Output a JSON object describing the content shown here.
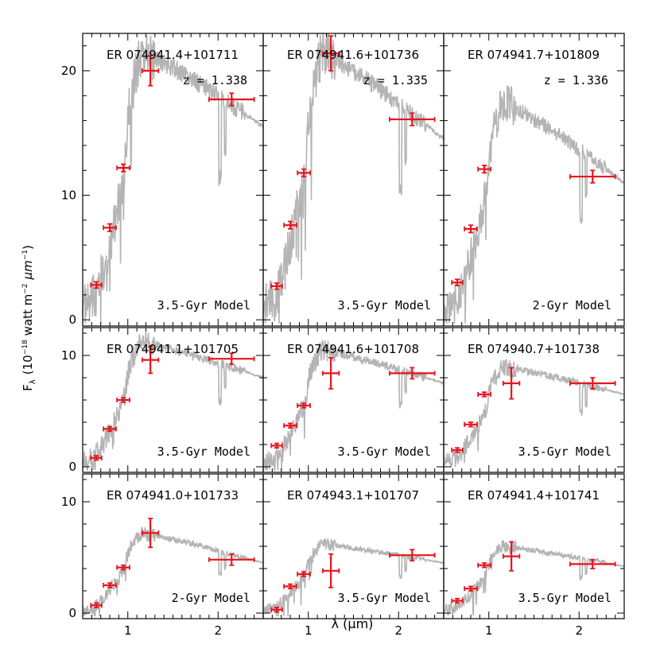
{
  "figure": {
    "ylabel": "F_λ (10⁻¹⁸ watt m⁻² μm⁻¹)",
    "ylabel_main": "F",
    "ylabel_sub": "λ",
    "ylabel_paren_open": "(10",
    "ylabel_exp1": "−18",
    "ylabel_mid": "watt m",
    "ylabel_exp2": "−2",
    "ylabel_mu": "μm",
    "ylabel_exp3": "−1",
    "ylabel_paren_close": ")",
    "xlabel": "λ (μm)",
    "model_color": "#b4b4b4",
    "point_color": "#e8141c"
  },
  "chart_data": [
    {
      "type": "line",
      "name": "ER 074941.4+101711",
      "z_label": "z = 1.338",
      "model": "3.5-Gyr Model",
      "model_age": 3.5,
      "row": 0,
      "col": 0,
      "ylim": [
        -0.5,
        23
      ],
      "yticks": [
        0,
        10,
        20
      ],
      "xticks": [
        1,
        2
      ],
      "xlim": [
        0.5,
        2.5
      ],
      "model_peak": 21.5,
      "model_red": 15.5,
      "photometry": [
        {
          "x": 0.65,
          "y": 2.8,
          "xerr": 0.06,
          "yerr": 0.25
        },
        {
          "x": 0.8,
          "y": 7.4,
          "xerr": 0.07,
          "yerr": 0.3
        },
        {
          "x": 0.95,
          "y": 12.2,
          "xerr": 0.07,
          "yerr": 0.3
        },
        {
          "x": 1.25,
          "y": 20.0,
          "xerr": 0.09,
          "yerr": 1.2
        },
        {
          "x": 2.15,
          "y": 17.7,
          "xerr": 0.25,
          "yerr": 0.5
        }
      ]
    },
    {
      "type": "line",
      "name": "ER 074941.6+101736",
      "z_label": "z = 1.335",
      "model": "3.5-Gyr Model",
      "model_age": 3.5,
      "row": 0,
      "col": 1,
      "ylim": [
        -0.5,
        23
      ],
      "yticks": [
        0,
        10,
        20
      ],
      "xticks": [
        1,
        2
      ],
      "xlim": [
        0.5,
        2.5
      ],
      "model_peak": 21.5,
      "model_red": 14.5,
      "photometry": [
        {
          "x": 0.65,
          "y": 2.7,
          "xerr": 0.06,
          "yerr": 0.25
        },
        {
          "x": 0.8,
          "y": 7.6,
          "xerr": 0.07,
          "yerr": 0.3
        },
        {
          "x": 0.95,
          "y": 11.8,
          "xerr": 0.07,
          "yerr": 0.3
        },
        {
          "x": 1.25,
          "y": 21.4,
          "xerr": 0.09,
          "yerr": 1.4
        },
        {
          "x": 2.15,
          "y": 16.1,
          "xerr": 0.25,
          "yerr": 0.5
        }
      ]
    },
    {
      "type": "line",
      "name": "ER 074941.7+101809",
      "z_label": "z = 1.336",
      "model": "2-Gyr Model",
      "model_age": 2,
      "row": 0,
      "col": 2,
      "ylim": [
        -0.5,
        23
      ],
      "yticks": [
        0,
        10,
        20
      ],
      "xticks": [
        1,
        2
      ],
      "xlim": [
        0.5,
        2.5
      ],
      "model_peak": 17.5,
      "model_red": 11.0,
      "photometry": [
        {
          "x": 0.65,
          "y": 3.0,
          "xerr": 0.06,
          "yerr": 0.25
        },
        {
          "x": 0.8,
          "y": 7.3,
          "xerr": 0.07,
          "yerr": 0.3
        },
        {
          "x": 0.95,
          "y": 12.1,
          "xerr": 0.07,
          "yerr": 0.3
        },
        {
          "x": 2.15,
          "y": 11.5,
          "xerr": 0.25,
          "yerr": 0.5
        }
      ]
    },
    {
      "type": "line",
      "name": "ER 074941.1+101705",
      "z_label": "",
      "model": "3.5-Gyr Model",
      "model_age": 3.5,
      "row": 1,
      "col": 0,
      "ylim": [
        -0.5,
        12.5
      ],
      "yticks": [
        0,
        10
      ],
      "xticks": [
        1,
        2
      ],
      "xlim": [
        0.5,
        2.5
      ],
      "model_peak": 11.2,
      "model_red": 8.0,
      "photometry": [
        {
          "x": 0.65,
          "y": 0.8,
          "xerr": 0.06,
          "yerr": 0.2
        },
        {
          "x": 0.8,
          "y": 3.4,
          "xerr": 0.07,
          "yerr": 0.2
        },
        {
          "x": 0.95,
          "y": 6.0,
          "xerr": 0.07,
          "yerr": 0.2
        },
        {
          "x": 1.25,
          "y": 9.6,
          "xerr": 0.09,
          "yerr": 1.2
        },
        {
          "x": 2.15,
          "y": 9.7,
          "xerr": 0.25,
          "yerr": 0.5
        }
      ]
    },
    {
      "type": "line",
      "name": "ER 074941.6+101708",
      "z_label": "",
      "model": "3.5-Gyr Model",
      "model_age": 3.5,
      "row": 1,
      "col": 1,
      "ylim": [
        -0.5,
        12.5
      ],
      "yticks": [
        0,
        10
      ],
      "xticks": [
        1,
        2
      ],
      "xlim": [
        0.5,
        2.5
      ],
      "model_peak": 10.5,
      "model_red": 7.5,
      "photometry": [
        {
          "x": 0.65,
          "y": 1.9,
          "xerr": 0.06,
          "yerr": 0.2
        },
        {
          "x": 0.8,
          "y": 3.7,
          "xerr": 0.07,
          "yerr": 0.2
        },
        {
          "x": 0.95,
          "y": 5.5,
          "xerr": 0.07,
          "yerr": 0.2
        },
        {
          "x": 1.25,
          "y": 8.4,
          "xerr": 0.09,
          "yerr": 1.4
        },
        {
          "x": 2.15,
          "y": 8.4,
          "xerr": 0.25,
          "yerr": 0.5
        }
      ]
    },
    {
      "type": "line",
      "name": "ER 074940.7+101738",
      "z_label": "",
      "model": "3.5-Gyr Model",
      "model_age": 3.5,
      "row": 1,
      "col": 2,
      "ylim": [
        -0.5,
        12.5
      ],
      "yticks": [
        0,
        10
      ],
      "xticks": [
        1,
        2
      ],
      "xlim": [
        0.5,
        2.5
      ],
      "model_peak": 9.0,
      "model_red": 6.5,
      "photometry": [
        {
          "x": 0.65,
          "y": 1.5,
          "xerr": 0.06,
          "yerr": 0.2
        },
        {
          "x": 0.8,
          "y": 3.8,
          "xerr": 0.07,
          "yerr": 0.2
        },
        {
          "x": 0.95,
          "y": 6.5,
          "xerr": 0.07,
          "yerr": 0.2
        },
        {
          "x": 1.25,
          "y": 7.5,
          "xerr": 0.09,
          "yerr": 1.4
        },
        {
          "x": 2.15,
          "y": 7.5,
          "xerr": 0.25,
          "yerr": 0.5
        }
      ]
    },
    {
      "type": "line",
      "name": "ER 074941.0+101733",
      "z_label": "",
      "model": "2-Gyr Model",
      "model_age": 2,
      "row": 2,
      "col": 0,
      "ylim": [
        -0.5,
        12.5
      ],
      "yticks": [
        0,
        10
      ],
      "xticks": [
        1,
        2
      ],
      "xlim": [
        0.5,
        2.5
      ],
      "model_peak": 7.2,
      "model_red": 4.5,
      "photometry": [
        {
          "x": 0.65,
          "y": 0.7,
          "xerr": 0.06,
          "yerr": 0.2
        },
        {
          "x": 0.8,
          "y": 2.5,
          "xerr": 0.07,
          "yerr": 0.2
        },
        {
          "x": 0.95,
          "y": 4.1,
          "xerr": 0.07,
          "yerr": 0.2
        },
        {
          "x": 1.25,
          "y": 7.2,
          "xerr": 0.09,
          "yerr": 1.3
        },
        {
          "x": 2.15,
          "y": 4.8,
          "xerr": 0.25,
          "yerr": 0.5
        }
      ]
    },
    {
      "type": "line",
      "name": "ER 074943.1+101707",
      "z_label": "",
      "model": "3.5-Gyr Model",
      "model_age": 3.5,
      "row": 2,
      "col": 1,
      "ylim": [
        -0.5,
        12.5
      ],
      "yticks": [
        0,
        10
      ],
      "xticks": [
        1,
        2
      ],
      "xlim": [
        0.5,
        2.5
      ],
      "model_peak": 6.2,
      "model_red": 4.5,
      "photometry": [
        {
          "x": 0.65,
          "y": 0.3,
          "xerr": 0.06,
          "yerr": 0.2
        },
        {
          "x": 0.8,
          "y": 2.4,
          "xerr": 0.07,
          "yerr": 0.2
        },
        {
          "x": 0.95,
          "y": 3.5,
          "xerr": 0.07,
          "yerr": 0.2
        },
        {
          "x": 1.25,
          "y": 3.8,
          "xerr": 0.09,
          "yerr": 1.5
        },
        {
          "x": 2.15,
          "y": 5.2,
          "xerr": 0.25,
          "yerr": 0.5
        }
      ]
    },
    {
      "type": "line",
      "name": "ER 074941.4+101741",
      "z_label": "",
      "model": "3.5-Gyr Model",
      "model_age": 3.5,
      "row": 2,
      "col": 2,
      "ylim": [
        -0.5,
        12.5
      ],
      "yticks": [
        0,
        10
      ],
      "xticks": [
        1,
        2
      ],
      "xlim": [
        0.5,
        2.5
      ],
      "model_peak": 6.0,
      "model_red": 4.2,
      "photometry": [
        {
          "x": 0.65,
          "y": 1.1,
          "xerr": 0.06,
          "yerr": 0.2
        },
        {
          "x": 0.8,
          "y": 2.2,
          "xerr": 0.07,
          "yerr": 0.2
        },
        {
          "x": 0.95,
          "y": 4.3,
          "xerr": 0.07,
          "yerr": 0.2
        },
        {
          "x": 1.25,
          "y": 5.1,
          "xerr": 0.09,
          "yerr": 1.3
        },
        {
          "x": 2.15,
          "y": 4.4,
          "xerr": 0.25,
          "yerr": 0.4
        }
      ]
    }
  ]
}
